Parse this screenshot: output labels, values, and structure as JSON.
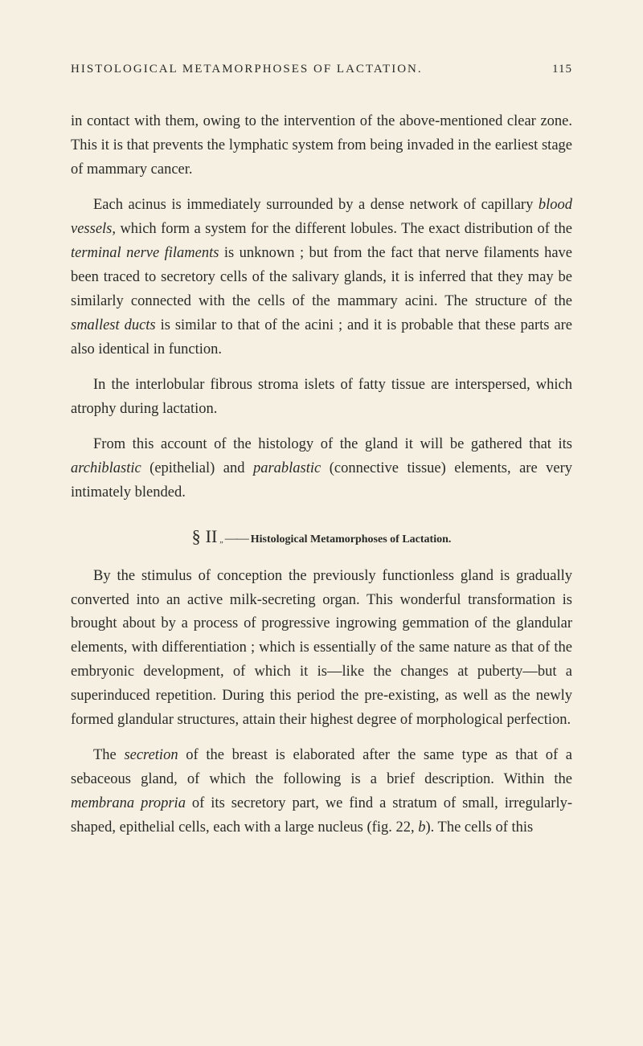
{
  "header": {
    "title": "HISTOLOGICAL METAMORPHOSES OF LACTATION.",
    "pageNumber": "115"
  },
  "paragraphs": {
    "p1_a": "in contact with them, owing to the intervention of the above-mentioned clear zone. This it is that prevents the lymphatic system from being invaded in the earliest stage of mammary cancer.",
    "p2_a": "Each acinus is immediately surrounded by a dense network of capillary ",
    "p2_b": "blood vessels,",
    "p2_c": " which form a system for the different lobules. The exact distribution of the ",
    "p2_d": "terminal nerve filaments",
    "p2_e": " is unknown ; but from the fact that nerve filaments have been traced to secretory cells of the salivary glands, it is inferred that they may be similarly connected with the cells of the mammary acini. The structure of the ",
    "p2_f": "smallest ducts",
    "p2_g": " is similar to that of the acini ; and it is probable that these parts are also identical in function.",
    "p3_a": "In the interlobular fibrous stroma islets of fatty tissue are interspersed, which atrophy during lactation.",
    "p4_a": "From this account of the histology of the gland it will be gathered that its ",
    "p4_b": "archiblastic",
    "p4_c": " (epithelial) and ",
    "p4_d": "parablastic",
    "p4_e": " (connective tissue) elements, are very intimately blended.",
    "p5_a": "By the stimulus of conception the previously functionless gland is gradually converted into an active milk-secreting organ. This wonderful transformation is brought about by a process of progressive ingrowing gemmation of the glandular elements, with differentiation ; which is essentially of the same nature as that of the embryonic development, of which it is—like the changes at puberty—but a superinduced repetition. During this period the pre-existing, as well as the newly formed glandular structures, attain their highest degree of morphological perfection.",
    "p6_a": "The ",
    "p6_b": "secretion",
    "p6_c": " of the breast is elaborated after the same type as that of a sebaceous gland, of which the following is a brief description. Within the ",
    "p6_d": "membrana propria",
    "p6_e": " of its secretory part, we find a stratum of small, irregularly-shaped, epithelial cells, each with a large nucleus (fig. 22, ",
    "p6_f": "b",
    "p6_g": "). The cells of this"
  },
  "section": {
    "symbol": "§",
    "number": "II",
    "period": "„",
    "dash": "——",
    "text": "Histological Metamorphoses of Lactation."
  },
  "style": {
    "background_color": "#f5f0e1",
    "text_color": "#2a2a28",
    "body_font_size": 18.5,
    "header_font_size": 15,
    "line_height": 1.62
  }
}
